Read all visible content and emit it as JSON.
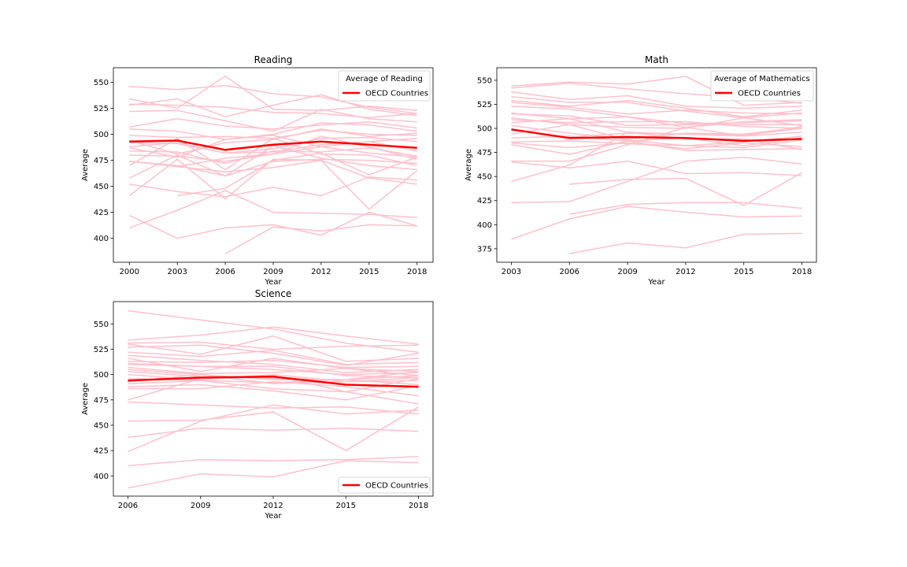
{
  "colors": {
    "country_line": "#ffc0cb",
    "oecd_line": "#ff0000",
    "axes": "#000000",
    "legend_border": "#cccccc"
  },
  "chart_data": [
    {
      "type": "line",
      "title": "Reading",
      "xlabel": "Year",
      "ylabel": "Average",
      "x": [
        2000,
        2003,
        2006,
        2009,
        2012,
        2015,
        2018
      ],
      "xticks": [
        "2000",
        "2003",
        "2006",
        "2009",
        "2012",
        "2015",
        "2018"
      ],
      "yticks": [
        "400",
        "425",
        "450",
        "475",
        "500",
        "525",
        "550"
      ],
      "xlim": [
        1999,
        2019
      ],
      "ylim": [
        377,
        564
      ],
      "legend": {
        "title": "Average of Reading",
        "entry": "OECD Countries",
        "placement": "upper right"
      },
      "oecd": [
        493,
        494,
        485,
        490,
        493,
        490,
        487
      ],
      "countries": [
        [
          546,
          543,
          547,
          539,
          536,
          526,
          520
        ],
        [
          534,
          525,
          556,
          524,
          523,
          527,
          523
        ],
        [
          528,
          534,
          517,
          528,
          538,
          524,
          518
        ],
        [
          529,
          528,
          526,
          521,
          520,
          516,
          520
        ],
        [
          522,
          523,
          513,
          503,
          524,
          515,
          512
        ],
        [
          507,
          515,
          508,
          505,
          509,
          512,
          506
        ],
        [
          505,
          503,
          495,
          500,
          511,
          509,
          503
        ],
        [
          499,
          497,
          498,
          496,
          504,
          500,
          499
        ],
        [
          494,
          481,
          492,
          495,
          505,
          498,
          501
        ],
        [
          492,
          491,
          482,
          486,
          496,
          497,
          493
        ],
        [
          488,
          492,
          482,
          483,
          490,
          493,
          496
        ],
        [
          487,
          478,
          495,
          499,
          488,
          493,
          484
        ],
        [
          484,
          483,
          472,
          484,
          483,
          487,
          479
        ],
        [
          480,
          479,
          474,
          481,
          488,
          482,
          478
        ],
        [
          474,
          469,
          477,
          481,
          498,
          488,
          476
        ],
        [
          470,
          496,
          466,
          496,
          481,
          480,
          470
        ],
        [
          474,
          470,
          460,
          474,
          476,
          475,
          472
        ],
        [
          458,
          480,
          460,
          489,
          477,
          470,
          466
        ],
        [
          452,
          445,
          440,
          449,
          441,
          459,
          456
        ],
        [
          441,
          476,
          438,
          476,
          475,
          428,
          465
        ],
        [
          422,
          400,
          410,
          413,
          403,
          425,
          412
        ],
        [
          410,
          427,
          446,
          425,
          424,
          423,
          420
        ],
        [
          null,
          null,
          385,
          411,
          407,
          413,
          412
        ],
        [
          null,
          441,
          448,
          475,
          482,
          461,
          478
        ],
        [
          null,
          469,
          464,
          468,
          475,
          458,
          452
        ]
      ]
    },
    {
      "type": "line",
      "title": "Math",
      "xlabel": "Year",
      "ylabel": "Average",
      "x": [
        2003,
        2006,
        2009,
        2012,
        2015,
        2018
      ],
      "xticks": [
        "2003",
        "2006",
        "2009",
        "2012",
        "2015",
        "2018"
      ],
      "yticks": [
        "375",
        "400",
        "425",
        "450",
        "475",
        "500",
        "525",
        "550"
      ],
      "xlim": [
        2002.25,
        2018.75
      ],
      "ylim": [
        361,
        563
      ],
      "legend": {
        "title": "Average of Mathematics",
        "entry": "OECD Countries",
        "placement": "upper right"
      },
      "oecd": [
        499,
        490,
        491,
        490,
        487,
        489
      ],
      "countries": [
        [
          544,
          548,
          546,
          554,
          524,
          527
        ],
        [
          542,
          547,
          541,
          536,
          532,
          526
        ],
        [
          538,
          530,
          534,
          523,
          521,
          523
        ],
        [
          533,
          527,
          527,
          518,
          511,
          516
        ],
        [
          529,
          523,
          529,
          521,
          512,
          519
        ],
        [
          527,
          522,
          515,
          519,
          516,
          515
        ],
        [
          523,
          520,
          512,
          505,
          506,
          508
        ],
        [
          516,
          510,
          512,
          501,
          507,
          509
        ],
        [
          515,
          513,
          503,
          504,
          504,
          504
        ],
        [
          511,
          504,
          501,
          500,
          511,
          503
        ],
        [
          509,
          506,
          507,
          507,
          502,
          500
        ],
        [
          506,
          510,
          496,
          494,
          493,
          500
        ],
        [
          503,
          495,
          489,
          495,
          494,
          501
        ],
        [
          498,
          491,
          495,
          494,
          492,
          496
        ],
        [
          494,
          504,
          488,
          482,
          486,
          492
        ],
        [
          490,
          492,
          487,
          490,
          482,
          490
        ],
        [
          486,
          487,
          484,
          482,
          480,
          488
        ],
        [
          485,
          480,
          485,
          479,
          485,
          481
        ],
        [
          483,
          473,
          487,
          477,
          478,
          479
        ],
        [
          466,
          466,
          483,
          501,
          492,
          502
        ],
        [
          465,
          459,
          466,
          453,
          454,
          451
        ],
        [
          445,
          462,
          496,
          489,
          489,
          478
        ],
        [
          423,
          424,
          445,
          466,
          470,
          463
        ],
        [
          385,
          406,
          419,
          413,
          408,
          409
        ],
        [
          null,
          442,
          447,
          448,
          420,
          454
        ],
        [
          null,
          411,
          421,
          423,
          423,
          417
        ],
        [
          null,
          370,
          381,
          376,
          390,
          391
        ]
      ]
    },
    {
      "type": "line",
      "title": "Science",
      "xlabel": "Year",
      "ylabel": "Average",
      "x": [
        2006,
        2009,
        2012,
        2015,
        2018
      ],
      "xticks": [
        "2006",
        "2009",
        "2012",
        "2015",
        "2018"
      ],
      "yticks": [
        "400",
        "425",
        "450",
        "475",
        "500",
        "525",
        "550"
      ],
      "xlim": [
        2005.4,
        2018.6
      ],
      "ylim": [
        380,
        572
      ],
      "legend": {
        "title": "",
        "entry": "OECD Countries",
        "placement": "lower right"
      },
      "oecd": [
        494,
        497,
        498,
        490,
        488
      ],
      "countries": [
        [
          563,
          554,
          545,
          531,
          522
        ],
        [
          534,
          539,
          547,
          538,
          530
        ],
        [
          531,
          532,
          525,
          528,
          529
        ],
        [
          530,
          520,
          538,
          513,
          516
        ],
        [
          527,
          529,
          521,
          509,
          521
        ],
        [
          522,
          518,
          524,
          510,
          512
        ],
        [
          519,
          514,
          510,
          502,
          505
        ],
        [
          516,
          503,
          516,
          506,
          503
        ],
        [
          513,
          512,
          514,
          507,
          508
        ],
        [
          511,
          508,
          505,
          500,
          502
        ],
        [
          510,
          508,
          508,
          499,
          497
        ],
        [
          507,
          501,
          502,
          506,
          499
        ],
        [
          505,
          500,
          495,
          495,
          503
        ],
        [
          503,
          498,
          496,
          495,
          499
        ],
        [
          500,
          495,
          500,
          493,
          494
        ],
        [
          496,
          494,
          492,
          495,
          490
        ],
        [
          493,
          500,
          491,
          493,
          497
        ],
        [
          491,
          494,
          486,
          483,
          496
        ],
        [
          488,
          490,
          484,
          475,
          489
        ],
        [
          486,
          486,
          493,
          488,
          479
        ],
        [
          475,
          496,
          499,
          483,
          471
        ],
        [
          473,
          470,
          467,
          468,
          461
        ],
        [
          454,
          455,
          463,
          425,
          468
        ],
        [
          438,
          447,
          445,
          447,
          444
        ],
        [
          424,
          454,
          470,
          461,
          465
        ],
        [
          410,
          416,
          415,
          416,
          419
        ],
        [
          388,
          402,
          399,
          415,
          413
        ]
      ]
    }
  ]
}
